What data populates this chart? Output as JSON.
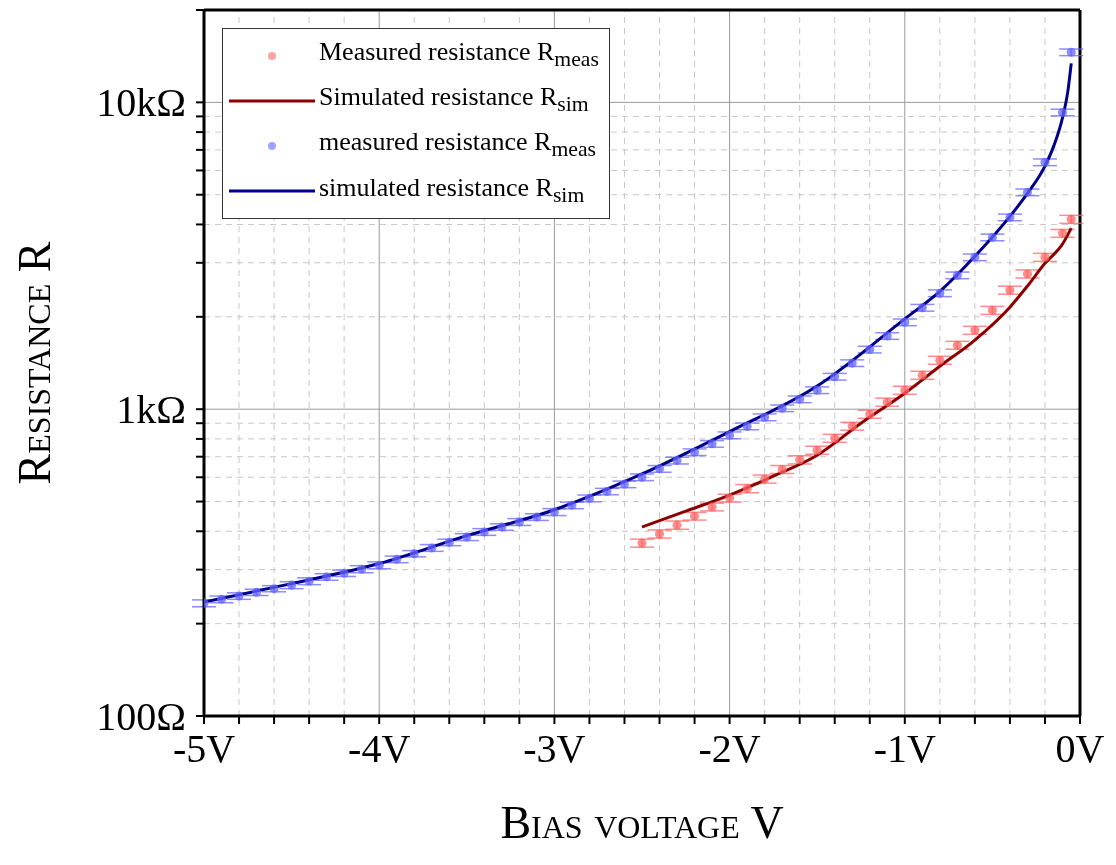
{
  "chart_data": {
    "type": "scatter",
    "xlabel": "Bias voltage V",
    "ylabel": "Resistance R",
    "log": "y",
    "grid": true,
    "legend": "top left",
    "xlim": [
      -5,
      0
    ],
    "xticks": [
      {
        "value": -5,
        "label": "-5V"
      },
      {
        "value": -4.8,
        "label": null
      },
      {
        "value": -4.6,
        "label": null
      },
      {
        "value": -4.4,
        "label": null
      },
      {
        "value": -4.2,
        "label": null
      },
      {
        "value": -4,
        "label": "-4V"
      },
      {
        "value": -3.8,
        "label": null
      },
      {
        "value": -3.6,
        "label": null
      },
      {
        "value": -3.4,
        "label": null
      },
      {
        "value": -3.2,
        "label": null
      },
      {
        "value": -3,
        "label": "-3V"
      },
      {
        "value": -2.8,
        "label": null
      },
      {
        "value": -2.6,
        "label": null
      },
      {
        "value": -2.4,
        "label": null
      },
      {
        "value": -2.2,
        "label": null
      },
      {
        "value": -2,
        "label": "-2V"
      },
      {
        "value": -1.8,
        "label": null
      },
      {
        "value": -1.6,
        "label": null
      },
      {
        "value": -1.4,
        "label": null
      },
      {
        "value": -1.2,
        "label": null
      },
      {
        "value": -1,
        "label": "-1V"
      },
      {
        "value": -0.8,
        "label": null
      },
      {
        "value": -0.6,
        "label": null
      },
      {
        "value": -0.4,
        "label": null
      },
      {
        "value": -0.2,
        "label": null
      },
      {
        "value": 0,
        "label": "0V"
      }
    ],
    "ylim": [
      100,
      20000
    ],
    "yticks": [
      {
        "value": 100,
        "label": "100Ω"
      },
      {
        "value": 200,
        "label": null
      },
      {
        "value": 300,
        "label": null
      },
      {
        "value": 400,
        "label": null
      },
      {
        "value": 500,
        "label": null
      },
      {
        "value": 600,
        "label": null
      },
      {
        "value": 700,
        "label": null
      },
      {
        "value": 800,
        "label": null
      },
      {
        "value": 900,
        "label": null
      },
      {
        "value": 1000,
        "label": "1kΩ"
      },
      {
        "value": 2000,
        "label": null
      },
      {
        "value": 3000,
        "label": null
      },
      {
        "value": 4000,
        "label": null
      },
      {
        "value": 5000,
        "label": null
      },
      {
        "value": 6000,
        "label": null
      },
      {
        "value": 7000,
        "label": null
      },
      {
        "value": 8000,
        "label": null
      },
      {
        "value": 9000,
        "label": null
      },
      {
        "value": 10000,
        "label": "10kΩ"
      },
      {
        "value": 20000,
        "label": null
      }
    ],
    "series": [
      {
        "name": "Measured resistance R$_{meas}$",
        "type": "scatter",
        "marker": "circle",
        "color": "#ff6464",
        "x": [
          -2.5,
          -2.4,
          -2.3,
          -2.2,
          -2.1,
          -2,
          -1.9,
          -1.8,
          -1.7,
          -1.6,
          -1.5,
          -1.4,
          -1.3,
          -1.2,
          -1.1,
          -1,
          -0.9,
          -0.8,
          -0.7,
          -0.6,
          -0.5,
          -0.4,
          -0.3,
          -0.2,
          -0.1,
          -0.05
        ],
        "values": [
          366,
          392,
          419,
          448,
          480,
          513,
          551,
          592,
          636,
          684,
          735,
          804,
          880,
          963,
          1054,
          1153,
          1290,
          1444,
          1616,
          1808,
          2100,
          2443,
          2760,
          3126,
          3742,
          4158
        ],
        "errors": [
          11,
          12,
          13,
          13,
          14,
          15,
          17,
          18,
          19,
          21,
          22,
          24,
          26,
          29,
          32,
          35,
          39,
          43,
          48,
          54,
          63,
          73,
          83,
          94,
          110,
          125
        ]
      },
      {
        "name": "Simulated resistance R$_{sim}$",
        "type": "line",
        "line_style": "solid",
        "color": "#8b0000",
        "x": [
          -2.5,
          -2.25,
          -2,
          -1.75,
          -1.5,
          -1.25,
          -1,
          -0.8,
          -0.6,
          -0.4,
          -0.3,
          -0.2,
          -0.1,
          -0.05
        ],
        "values": [
          413,
          465,
          525,
          605,
          708,
          900,
          1127,
          1380,
          1680,
          2150,
          2520,
          2990,
          3450,
          3890
        ]
      },
      {
        "name": "measured resistance R$_{meas}$",
        "type": "scatter",
        "marker": "circle",
        "color": "#6464ff",
        "x": [
          -5,
          -4.9,
          -4.8,
          -4.7,
          -4.6,
          -4.5,
          -4.4,
          -4.3,
          -4.2,
          -4.1,
          -4,
          -3.9,
          -3.8,
          -3.7,
          -3.6,
          -3.5,
          -3.4,
          -3.3,
          -3.2,
          -3.1,
          -3,
          -2.9,
          -2.8,
          -2.7,
          -2.6,
          -2.5,
          -2.4,
          -2.3,
          -2.2,
          -2.1,
          -2,
          -1.9,
          -1.8,
          -1.7,
          -1.6,
          -1.5,
          -1.4,
          -1.3,
          -1.2,
          -1.1,
          -1,
          -0.9,
          -0.8,
          -0.7,
          -0.6,
          -0.5,
          -0.4,
          -0.3,
          -0.2,
          -0.1,
          -0.05
        ],
        "values": [
          233,
          240,
          246,
          253,
          260,
          267,
          275,
          284,
          292,
          301,
          310,
          324,
          338,
          353,
          368,
          383,
          398,
          413,
          429,
          445,
          462,
          486,
          512,
          539,
          569,
          600,
          639,
          680,
          724,
          771,
          822,
          879,
          941,
          1007,
          1077,
          1153,
          1276,
          1413,
          1564,
          1732,
          1919,
          2141,
          2388,
          2730,
          3126,
          3630,
          4218,
          5090,
          6380,
          9270,
          14560
        ],
        "errors": [
          6,
          6,
          6,
          6,
          6,
          7,
          7,
          7,
          7,
          8,
          8,
          8,
          8,
          9,
          9,
          10,
          10,
          10,
          11,
          11,
          12,
          12,
          13,
          13,
          14,
          15,
          16,
          17,
          18,
          19,
          21,
          22,
          24,
          25,
          27,
          29,
          32,
          35,
          39,
          43,
          48,
          54,
          60,
          68,
          78,
          91,
          105,
          127,
          160,
          230,
          360
        ]
      },
      {
        "name": "simulated resistance R$_{sim}$",
        "type": "line",
        "line_style": "solid",
        "color": "#00008b",
        "x": [
          -5,
          -4.5,
          -4,
          -3.5,
          -3,
          -2.5,
          -2,
          -1.5,
          -1,
          -0.8,
          -0.6,
          -0.4,
          -0.3,
          -0.2,
          -0.15,
          -0.1,
          -0.07,
          -0.05
        ],
        "values": [
          235,
          270,
          314,
          387,
          470,
          615,
          845,
          1190,
          1970,
          2420,
          3150,
          4250,
          5050,
          6200,
          7200,
          8900,
          10800,
          13400
        ]
      }
    ]
  }
}
